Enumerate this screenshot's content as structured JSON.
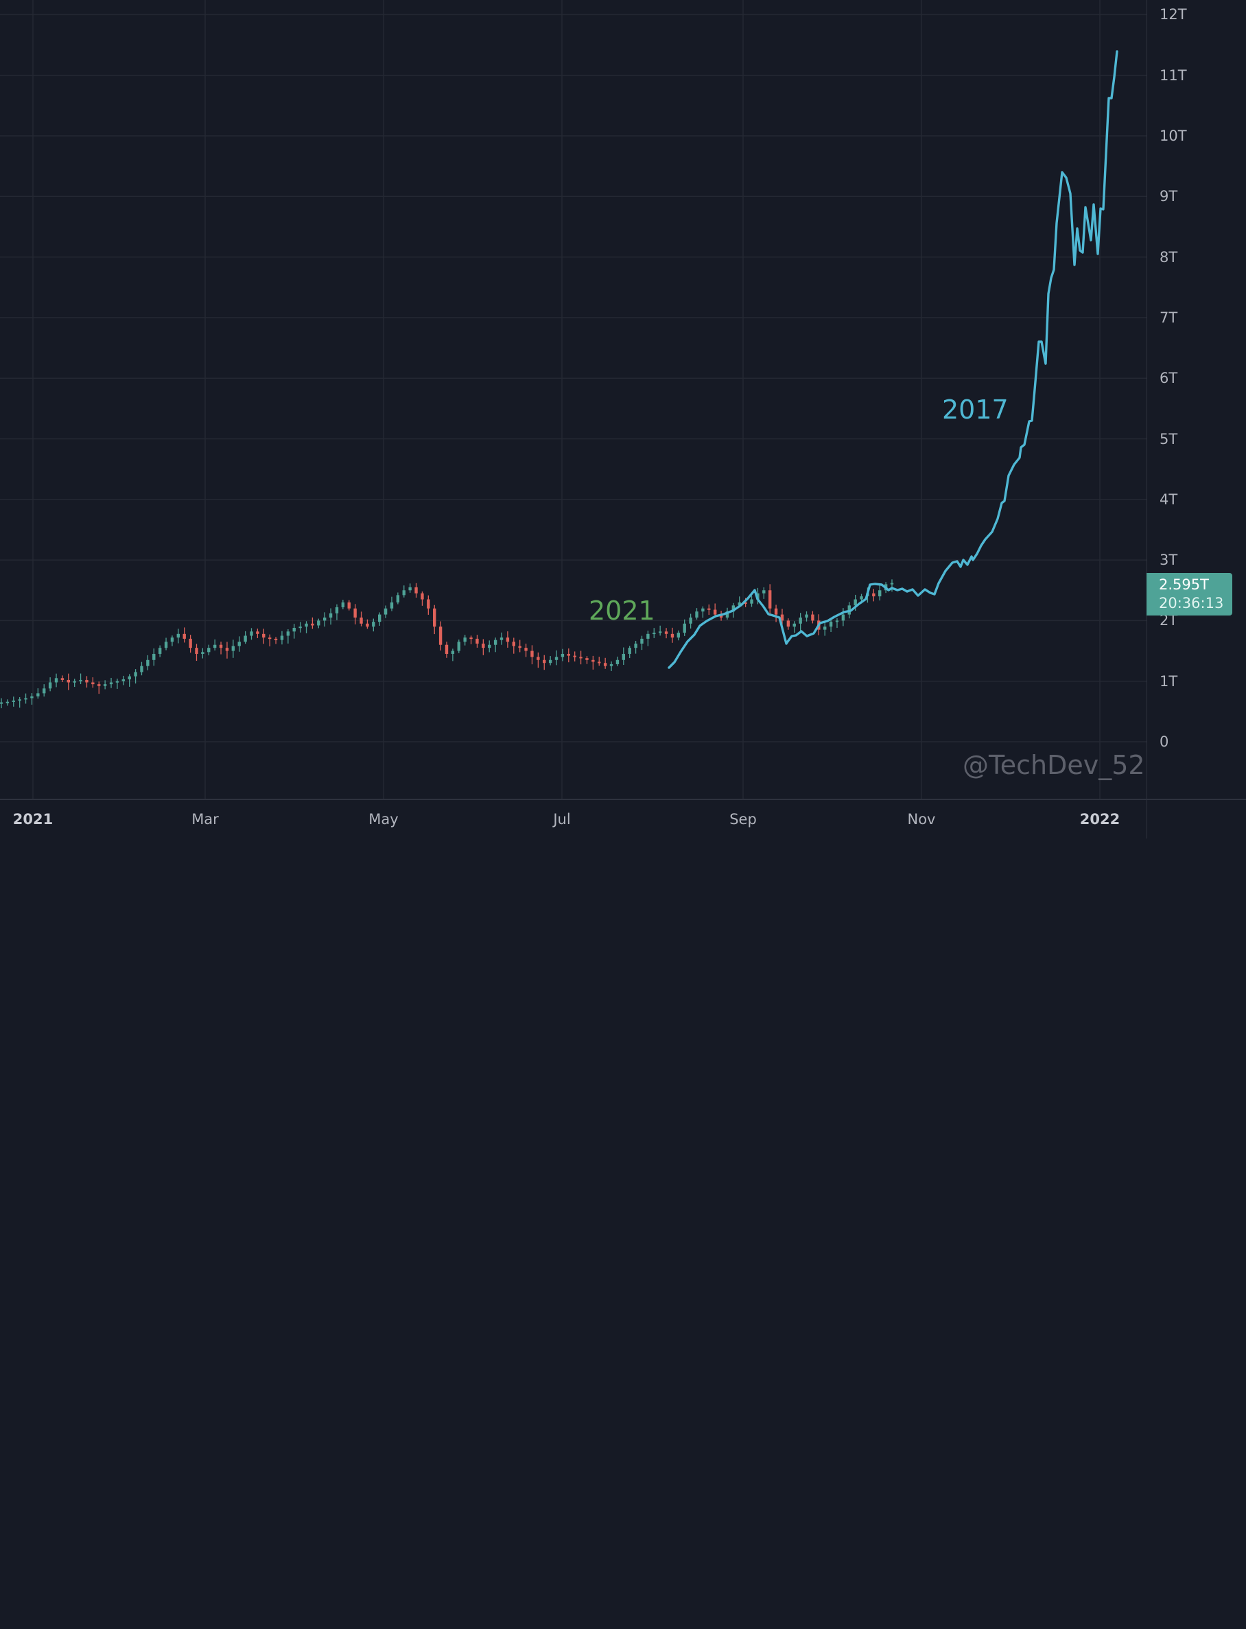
{
  "chart": {
    "watermark": "@TechDev_52",
    "annotations": {
      "label_2021": "2021",
      "label_2017": "2017"
    },
    "last_price": {
      "value": "2.595T",
      "countdown": "20:36:13"
    },
    "colors": {
      "background": "#161a25",
      "grid": "#242833",
      "up": "#4fa397",
      "down": "#e0625a",
      "overlay_line": "#4fb8d4",
      "label_2021": "#5fa85a"
    }
  },
  "price_axis": {
    "ticks": [
      "12T",
      "11T",
      "10T",
      "9T",
      "8T",
      "7T",
      "6T",
      "5T",
      "4T",
      "3T",
      "2T",
      "1T",
      "0"
    ]
  },
  "time_axis": {
    "ticks": [
      {
        "label": "2021",
        "bold": true
      },
      {
        "label": "Mar",
        "bold": false
      },
      {
        "label": "May",
        "bold": false
      },
      {
        "label": "Jul",
        "bold": false
      },
      {
        "label": "Sep",
        "bold": false
      },
      {
        "label": "Nov",
        "bold": false
      },
      {
        "label": "2022",
        "bold": true
      }
    ]
  },
  "chart_data": {
    "type": "line",
    "title": "",
    "xlabel": "",
    "ylabel": "",
    "ylim": [
      -0.9,
      12.3
    ],
    "grid": true,
    "x_ticks": [
      "2021",
      "Mar",
      "May",
      "Jul",
      "Sep",
      "Nov",
      "2022"
    ],
    "y_ticks": [
      "0",
      "1T",
      "2T",
      "3T",
      "4T",
      "5T",
      "6T",
      "7T",
      "8T",
      "9T",
      "10T",
      "11T",
      "12T"
    ],
    "series": [
      {
        "name": "2021",
        "style": "candlestick",
        "x_range": [
          "2020-12-20",
          "2021-10-20"
        ],
        "closes": [
          0.65,
          0.66,
          0.68,
          0.7,
          0.72,
          0.75,
          0.8,
          0.88,
          0.98,
          1.05,
          1.02,
          0.98,
          1.0,
          1.02,
          0.98,
          0.95,
          0.92,
          0.95,
          0.98,
          1.0,
          1.03,
          1.08,
          1.15,
          1.25,
          1.35,
          1.45,
          1.55,
          1.65,
          1.72,
          1.78,
          1.7,
          1.55,
          1.45,
          1.48,
          1.55,
          1.6,
          1.55,
          1.5,
          1.58,
          1.65,
          1.75,
          1.82,
          1.78,
          1.72,
          1.7,
          1.68,
          1.75,
          1.82,
          1.88,
          1.9,
          1.95,
          1.92,
          2.0,
          2.05,
          2.12,
          2.22,
          2.3,
          2.2,
          2.05,
          1.95,
          1.9,
          1.98,
          2.1,
          2.2,
          2.3,
          2.42,
          2.5,
          2.55,
          2.45,
          2.35,
          2.2,
          1.9,
          1.6,
          1.45,
          1.5,
          1.65,
          1.72,
          1.7,
          1.62,
          1.55,
          1.6,
          1.68,
          1.72,
          1.65,
          1.58,
          1.55,
          1.5,
          1.4,
          1.35,
          1.3,
          1.35,
          1.4,
          1.45,
          1.42,
          1.4,
          1.38,
          1.35,
          1.32,
          1.3,
          1.25,
          1.28,
          1.35,
          1.45,
          1.55,
          1.62,
          1.7,
          1.78,
          1.8,
          1.82,
          1.78,
          1.72,
          1.8,
          1.95,
          2.05,
          2.15,
          2.2,
          2.18,
          2.1,
          2.05,
          2.15,
          2.25,
          2.3,
          2.28,
          2.35,
          2.45,
          2.5,
          2.2,
          2.1,
          2.0,
          1.9,
          1.95,
          2.05,
          2.1,
          2.0,
          1.85,
          1.9,
          1.98,
          2.0,
          2.1,
          2.25,
          2.35,
          2.4,
          2.45,
          2.4,
          2.5,
          2.6,
          2.62
        ]
      },
      {
        "name": "2017",
        "style": "line",
        "points": [
          [
            975,
            973
          ],
          [
            983,
            965
          ],
          [
            992,
            950
          ],
          [
            1002,
            935
          ],
          [
            1012,
            925
          ],
          [
            1020,
            912
          ],
          [
            1030,
            905
          ],
          [
            1043,
            898
          ],
          [
            1055,
            895
          ],
          [
            1068,
            890
          ],
          [
            1080,
            882
          ],
          [
            1090,
            872
          ],
          [
            1100,
            860
          ],
          [
            1104,
            873
          ],
          [
            1112,
            883
          ],
          [
            1120,
            895
          ],
          [
            1130,
            898
          ],
          [
            1136,
            900
          ],
          [
            1146,
            938
          ],
          [
            1148,
            935
          ],
          [
            1154,
            927
          ],
          [
            1160,
            926
          ],
          [
            1168,
            920
          ],
          [
            1176,
            927
          ],
          [
            1186,
            923
          ],
          [
            1195,
            908
          ],
          [
            1206,
            905
          ],
          [
            1216,
            899
          ],
          [
            1230,
            892
          ],
          [
            1240,
            890
          ],
          [
            1252,
            880
          ],
          [
            1262,
            873
          ],
          [
            1268,
            852
          ],
          [
            1275,
            851
          ],
          [
            1285,
            852
          ],
          [
            1295,
            860
          ],
          [
            1300,
            857
          ],
          [
            1308,
            860
          ],
          [
            1315,
            858
          ],
          [
            1322,
            862
          ],
          [
            1330,
            859
          ],
          [
            1338,
            868
          ],
          [
            1348,
            859
          ],
          [
            1356,
            864
          ],
          [
            1362,
            866
          ],
          [
            1368,
            850
          ],
          [
            1378,
            832
          ],
          [
            1388,
            820
          ],
          [
            1395,
            818
          ],
          [
            1400,
            826
          ],
          [
            1404,
            816
          ],
          [
            1410,
            823
          ],
          [
            1416,
            811
          ],
          [
            1418,
            816
          ],
          [
            1424,
            807
          ],
          [
            1430,
            795
          ],
          [
            1436,
            786
          ],
          [
            1446,
            775
          ],
          [
            1454,
            756
          ],
          [
            1460,
            733
          ],
          [
            1464,
            730
          ],
          [
            1470,
            693
          ],
          [
            1478,
            677
          ],
          [
            1486,
            667
          ],
          [
            1488,
            652
          ],
          [
            1493,
            648
          ],
          [
            1500,
            614
          ],
          [
            1504,
            613
          ],
          [
            1508,
            568
          ],
          [
            1514,
            498
          ],
          [
            1518,
            498
          ],
          [
            1524,
            530
          ],
          [
            1528,
            428
          ],
          [
            1532,
            405
          ],
          [
            1536,
            393
          ],
          [
            1540,
            325
          ],
          [
            1548,
            251
          ],
          [
            1554,
            259
          ],
          [
            1560,
            282
          ],
          [
            1566,
            386
          ],
          [
            1570,
            333
          ],
          [
            1574,
            365
          ],
          [
            1578,
            368
          ],
          [
            1582,
            302
          ],
          [
            1590,
            350
          ],
          [
            1594,
            298
          ],
          [
            1600,
            370
          ],
          [
            1604,
            304
          ],
          [
            1608,
            305
          ],
          [
            1616,
            143
          ],
          [
            1620,
            143
          ],
          [
            1624,
            112
          ],
          [
            1628,
            75
          ]
        ],
        "note": "pixel coordinates approximating plotted overlay; y maps to value via (1081 - y)/88.3 T"
      }
    ],
    "last_value": "2.595T",
    "annotations": [
      "2021",
      "2017",
      "@TechDev_52"
    ]
  }
}
